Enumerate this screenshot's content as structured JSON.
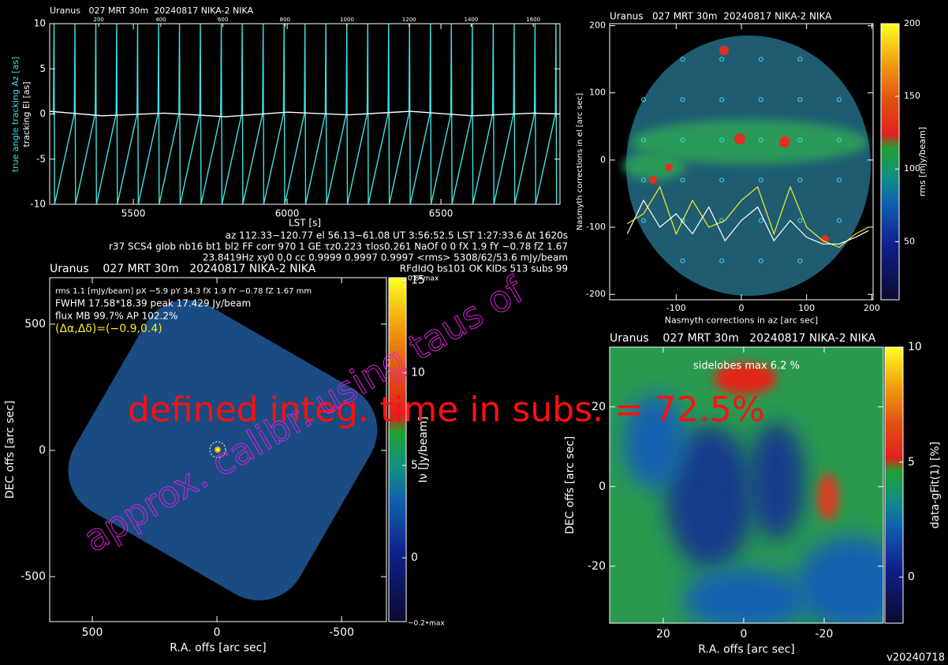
{
  "chart_data": [
    {
      "type": "line",
      "title": "Uranus   027 MRT 30m  20240817 NIKA-2 NIKA",
      "xlabel": "LST [s]",
      "ylabel": "true angle tracking Az [as]",
      "ylabel2": "tracking El [as]",
      "xlim": [
        5228,
        6887
      ],
      "ylim": [
        -10,
        10
      ],
      "xticks": [
        5500,
        6000,
        6500
      ],
      "yticks": [
        -10,
        -5,
        0,
        5,
        10
      ],
      "top_xlim": [
        42,
        1686
      ],
      "top_xticks": [
        200,
        400,
        600,
        800,
        1000,
        1200,
        1400,
        1600
      ],
      "series": [
        {
          "color": "#40e0e0",
          "x": [
            5240,
            5242,
            5244,
            5308,
            5310,
            5312,
            5376,
            5378,
            5380,
            5444,
            5446,
            5448,
            5512,
            5514,
            5516,
            5580,
            5582,
            5584,
            5648,
            5650,
            5652,
            5716,
            5718,
            5720,
            5784,
            5786,
            5788,
            5852,
            5854,
            5856,
            5920,
            5922,
            5924,
            5988,
            5990,
            5992,
            6056,
            6058,
            6060,
            6124,
            6126,
            6128,
            6192,
            6194,
            6196,
            6260,
            6262,
            6264,
            6328,
            6330,
            6332,
            6396,
            6398,
            6400,
            6464,
            6466,
            6468,
            6532,
            6534,
            6536,
            6600,
            6602,
            6604,
            6668,
            6670,
            6672,
            6736,
            6738,
            6740,
            6804,
            6806,
            6808,
            6872,
            6874,
            6876
          ],
          "values": [
            0,
            10,
            -10,
            0,
            10,
            -10,
            0,
            10,
            -10,
            0,
            10,
            -10,
            0,
            10,
            -10,
            0,
            10,
            -10,
            0,
            10,
            -10,
            0,
            10,
            -10,
            0,
            10,
            -10,
            0,
            10,
            -10,
            0,
            10,
            -10,
            0,
            10,
            -10,
            0,
            10,
            -10,
            0,
            10,
            -10,
            0,
            10,
            -10,
            0,
            10,
            -10,
            0,
            10,
            -10,
            0,
            10,
            -10,
            0,
            10,
            -10,
            0,
            10,
            -10,
            0,
            10,
            -10,
            0,
            10,
            -10,
            0,
            10,
            -10,
            0,
            10,
            -10,
            0,
            10,
            -10
          ]
        },
        {
          "color": "#ffffff",
          "x": [
            5228,
            5400,
            5600,
            5800,
            6000,
            6200,
            6400,
            6600,
            6800,
            6887
          ],
          "values": [
            0.3,
            -0.2,
            0.1,
            -0.3,
            0.2,
            -0.1,
            0.3,
            -0.2,
            0.1,
            0
          ]
        }
      ],
      "info": [
        "az 112.33−120.77 el 56.13−61.08 UT 3:56:52.5 LST 1:27:33.6 Δt 1620s",
        "r37 SCS4 glob nb16 bt1 bl2 FF corr 970 1 GE τz0.223 τlos0.261 NaOf 0 0 fX 1.9 fY −0.78 fZ 1.67",
        "23.8419Hz xy0 0,0 cc 0.9999 0.9997 0.9997 <rms> 5308/62/53.6 mJy/beam",
        "RFdIdQ bs101 OK KIDs 513 subs 99"
      ]
    },
    {
      "type": "scatter",
      "title": "Uranus   027 MRT 30m  20240817 NIKA-2 NIKA",
      "xlabel": "Nasmyth corrections in az [arc sec]",
      "ylabel": "Nasmyth corrections in el [arc sec]",
      "xlim": [
        -202,
        202
      ],
      "ylim": [
        -208,
        203
      ],
      "xticks": [
        -100,
        0,
        100,
        200
      ],
      "yticks": [
        -200,
        -100,
        0,
        100,
        200
      ],
      "colorbar": {
        "label": "rms [mJy/beam]",
        "lim": [
          10,
          200
        ],
        "ticks": [
          50,
          100,
          150,
          200
        ]
      },
      "points": {
        "color": "#40e0e0",
        "x": [
          -90,
          -30,
          30,
          90,
          -150,
          -90,
          -30,
          30,
          90,
          150,
          -150,
          -90,
          -30,
          30,
          90,
          150,
          -150,
          -90,
          -30,
          30,
          90,
          150,
          -150,
          -90,
          -30,
          30,
          90,
          150,
          -90,
          -30,
          30,
          90
        ],
        "y": [
          150,
          150,
          150,
          150,
          90,
          90,
          90,
          90,
          90,
          90,
          30,
          30,
          30,
          30,
          30,
          30,
          -30,
          -30,
          -30,
          -30,
          -30,
          -30,
          -90,
          -90,
          -90,
          -90,
          -90,
          -90,
          -150,
          -150,
          -150,
          -150
        ]
      },
      "series": [
        {
          "color": "#f0f020",
          "x": [
            -175,
            -150,
            -125,
            -100,
            -75,
            -50,
            -25,
            0,
            25,
            50,
            75,
            100,
            125,
            150,
            175,
            195
          ],
          "values": [
            -95,
            -80,
            -40,
            -110,
            -60,
            -100,
            -90,
            -60,
            -40,
            -110,
            -40,
            -100,
            -120,
            -130,
            -110,
            -100
          ]
        },
        {
          "color": "#ffffff",
          "x": [
            -175,
            -150,
            -125,
            -100,
            -75,
            -50,
            -25,
            0,
            25,
            50,
            75,
            100,
            125,
            150,
            175,
            195
          ],
          "values": [
            -110,
            -60,
            -100,
            -80,
            -110,
            -70,
            -120,
            -90,
            -70,
            -120,
            -90,
            -115,
            -125,
            -125,
            -115,
            -105
          ]
        }
      ]
    },
    {
      "type": "heatmap",
      "title": "Uranus    027 MRT 30m   20240817 NIKA-2 NIKA",
      "xlabel": "R.A. offs [arc sec]",
      "ylabel": "DEC offs [arc sec]",
      "xlim": [
        671,
        -680
      ],
      "ylim": [
        -678,
        684
      ],
      "xticks": [
        500,
        0,
        -500
      ],
      "yticks": [
        -500,
        0,
        500
      ],
      "colorbar": {
        "label": "Iν [Jy/beam]",
        "lim": [
          -3.45,
          15.15
        ],
        "ticks": [
          0,
          5,
          10,
          15
        ],
        "top_label": "0.8•max",
        "bottom_label": "−0.2•max"
      },
      "info": [
        "rms 1.1 [mJy/beam] pX −5.9 pY 34.3 fX 1.9 fY −0.78 fZ 1.67 mm",
        "FWHM 17.58*18.39 peak 17.429 Jy/beam",
        "flux MB 99.7% AP 102.2%",
        "(Δα,Δδ)=(−0.9,0.4)"
      ]
    },
    {
      "type": "heatmap",
      "title": "Uranus    027 MRT 30m   20240817 NIKA-2 NIKA",
      "xlabel": "R.A. offs [arc sec]",
      "ylabel": "DEC offs [arc sec]",
      "xlim": [
        33.3,
        -34.7
      ],
      "ylim": [
        -34.3,
        35
      ],
      "xticks": [
        20,
        0,
        -20
      ],
      "yticks": [
        -20,
        0,
        20
      ],
      "colorbar": {
        "label": "data-gFit(1) [%]",
        "lim": [
          -2,
          10
        ],
        "ticks": [
          0,
          5,
          10
        ]
      },
      "info": [
        "sidelobes max 6.2 %"
      ]
    }
  ],
  "overlay": {
    "integ": "defined integ. time in subs. = 72.5%",
    "calib": "approx. calibr. using taus of"
  },
  "version": "v20240718"
}
